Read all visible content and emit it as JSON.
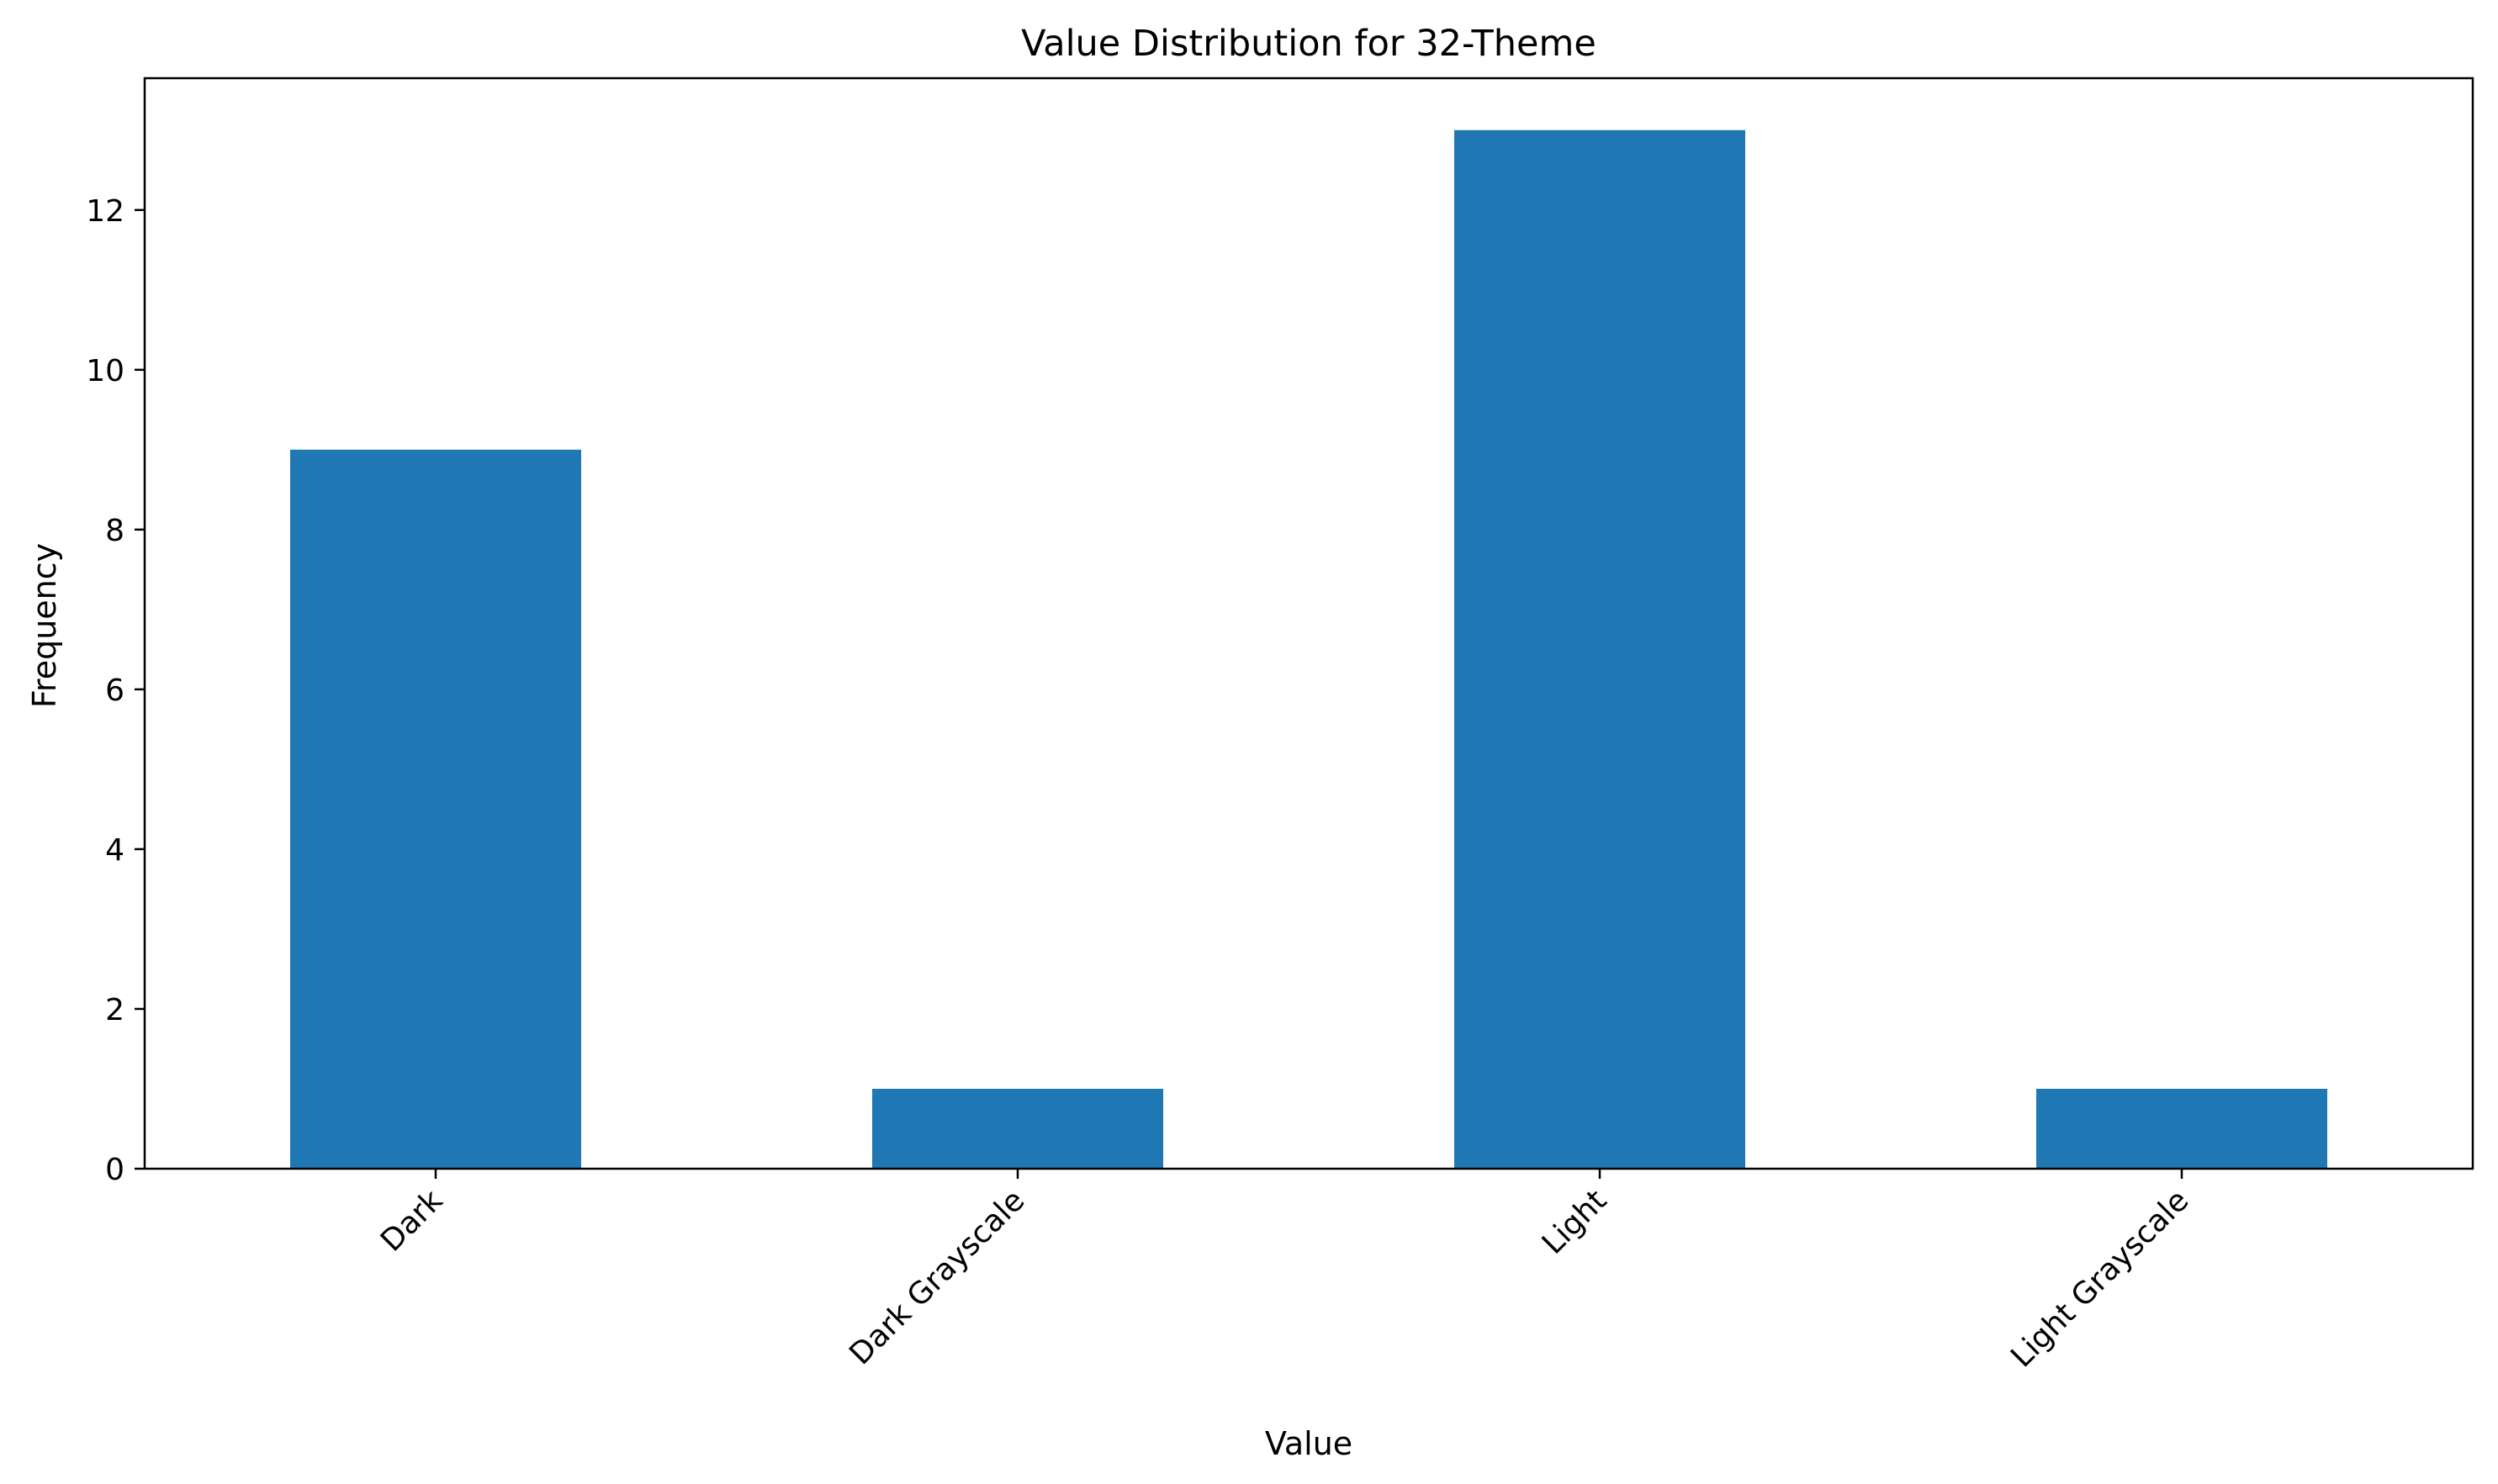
{
  "chart_data": {
    "type": "bar",
    "title": "Value Distribution for 32-Theme",
    "xlabel": "Value",
    "ylabel": "Frequency",
    "categories": [
      "Dark",
      "Dark Grayscale",
      "Light",
      "Light Grayscale"
    ],
    "values": [
      9,
      1,
      13,
      1
    ],
    "ylim": [
      0,
      13.65
    ],
    "yticks": [
      0,
      2,
      4,
      6,
      8,
      10,
      12
    ],
    "x_tick_rotation_deg": 45,
    "grid": false,
    "legend": "none",
    "bar_color": "#1f77b4"
  }
}
